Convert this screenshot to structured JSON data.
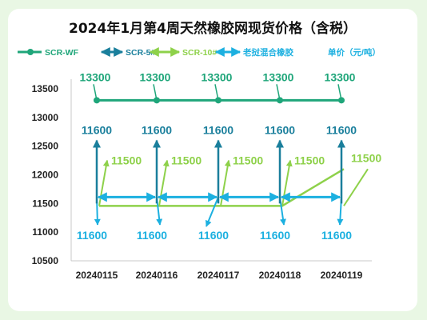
{
  "chart_data": {
    "type": "line",
    "title": "2024年1月第4周天然橡胶网现货价格（含税）",
    "categories": [
      "20240115",
      "20240116",
      "20240117",
      "20240118",
      "20240119"
    ],
    "ylim": [
      10500,
      13500
    ],
    "yticks": [
      10500,
      11000,
      11500,
      12000,
      12500,
      13000,
      13500
    ],
    "grid": false,
    "legend_position": "top",
    "unit_label": "单价（元/吨）",
    "series": [
      {
        "name": "SCR-WF",
        "color": "#1fa67a",
        "values": [
          13300,
          13300,
          13300,
          13300,
          13300
        ]
      },
      {
        "name": "SCR-5#",
        "color": "#1a7f9c",
        "values": [
          11600,
          11600,
          11600,
          11600,
          11600
        ]
      },
      {
        "name": "SCR-10#",
        "color": "#8ed14a",
        "values": [
          11500,
          11500,
          11500,
          11500,
          11500
        ]
      },
      {
        "name": "老挝混合橡胶",
        "color": "#1cb0e0",
        "values": [
          11600,
          11600,
          11600,
          11600,
          11600
        ]
      }
    ]
  },
  "colors": {
    "background": "#e9f7e4",
    "card": "#ffffff",
    "axis": "#c8c8c8"
  }
}
